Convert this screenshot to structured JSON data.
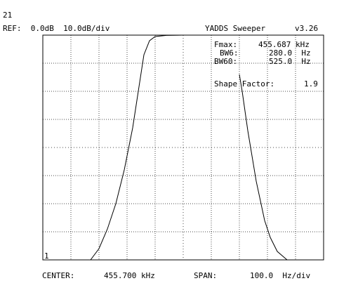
{
  "header": {
    "trace_number": "21",
    "ref_level": "REF:  0.0dB  10.0dB/div",
    "app_title": "YADDS Sweeper",
    "version": "v3.26"
  },
  "readout": {
    "fmax_label": "Fmax:",
    "fmax_value": "455.687 kHz",
    "bw6_label": "BW6:",
    "bw6_value": "280.0  Hz",
    "bw60_label": "BW60:",
    "bw60_value": "525.0  Hz",
    "shape_factor_label": "Shape Factor:",
    "shape_factor_value": "1.9"
  },
  "marker_label": "1",
  "footer": {
    "center_label": "CENTER:",
    "center_value": "455.700 kHz",
    "span_label": "SPAN:",
    "span_value": "100.0  Hz/div"
  },
  "chart_data": {
    "type": "line",
    "x_unit": "Hz offset from center",
    "y_unit": "dB",
    "xlim": [
      -500,
      500
    ],
    "ylim": [
      -80,
      0
    ],
    "grid": true,
    "series": [
      {
        "points": [
          [
            -500,
            -80
          ],
          [
            -330,
            -80
          ],
          [
            -300,
            -76
          ],
          [
            -270,
            -69
          ],
          [
            -240,
            -60
          ],
          [
            -210,
            -48
          ],
          [
            -180,
            -33
          ],
          [
            -160,
            -20
          ],
          [
            -140,
            -7
          ],
          [
            -120,
            -2
          ],
          [
            -100,
            -0.5
          ],
          [
            -60,
            -0.1
          ],
          [
            0,
            0
          ],
          [
            60,
            0
          ],
          [
            100,
            0
          ],
          [
            120,
            0
          ]
        ]
      },
      {
        "points": [
          [
            200,
            -14
          ],
          [
            210,
            -20
          ],
          [
            230,
            -34
          ],
          [
            260,
            -52
          ],
          [
            290,
            -66
          ],
          [
            310,
            -72
          ],
          [
            335,
            -77
          ],
          [
            370,
            -80
          ],
          [
            500,
            -80
          ]
        ]
      }
    ]
  }
}
